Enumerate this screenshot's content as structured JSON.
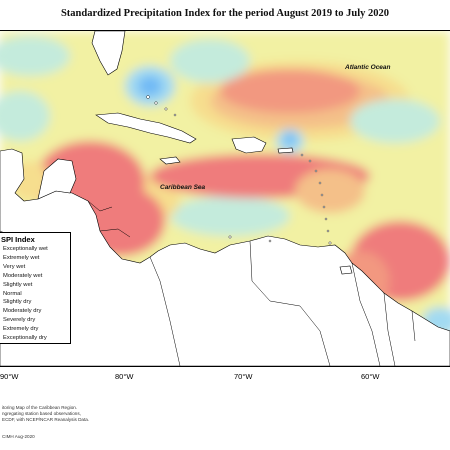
{
  "title": "Standardized Precipitation Index for the period August 2019 to July 2020",
  "labels": {
    "atlantic": "Atlantic Ocean",
    "caribbean": "Caribbean Sea"
  },
  "legend": {
    "title": "SPI Index",
    "items": [
      {
        "label": "Exceptionally wet",
        "color": "#1e6fd9"
      },
      {
        "label": "Extremely wet",
        "color": "#3f93f0"
      },
      {
        "label": "Very wet",
        "color": "#6fb9f5"
      },
      {
        "label": "Moderately wet",
        "color": "#a2daf2"
      },
      {
        "label": "Slightly wet",
        "color": "#c4ebdc"
      },
      {
        "label": "Normal",
        "color": "#f1f0a2"
      },
      {
        "label": "Slightly dry",
        "color": "#f6de8e"
      },
      {
        "label": "Moderately dry",
        "color": "#f4c089"
      },
      {
        "label": "Severely dry",
        "color": "#f29880"
      },
      {
        "label": "Extremely dry",
        "color": "#ef7b7b"
      },
      {
        "label": "Exceptionally dry",
        "color": "#ed6f72"
      }
    ]
  },
  "axis_ticks": [
    "90°W",
    "80°W",
    "70°W",
    "60°W"
  ],
  "footer": {
    "line1": "itoring Map of the Caribbean Region.",
    "line2": "ngregating station based observations,",
    "line3": "ECDF, with NCEP/NCAR Reanalysis Data.",
    "line4": "CIMH Aug-2020"
  },
  "colors": {
    "normal": "#f2f1a3",
    "slightly_wet": "#c4ebdc",
    "moderately_wet": "#a2daf2",
    "very_wet": "#6fb9f5",
    "slightly_dry": "#f6de8e",
    "moderately_dry": "#f4c089",
    "severely_dry": "#f29880",
    "extremely_dry": "#ef7b7b",
    "land": "#ffffff",
    "coast": "#000000"
  }
}
